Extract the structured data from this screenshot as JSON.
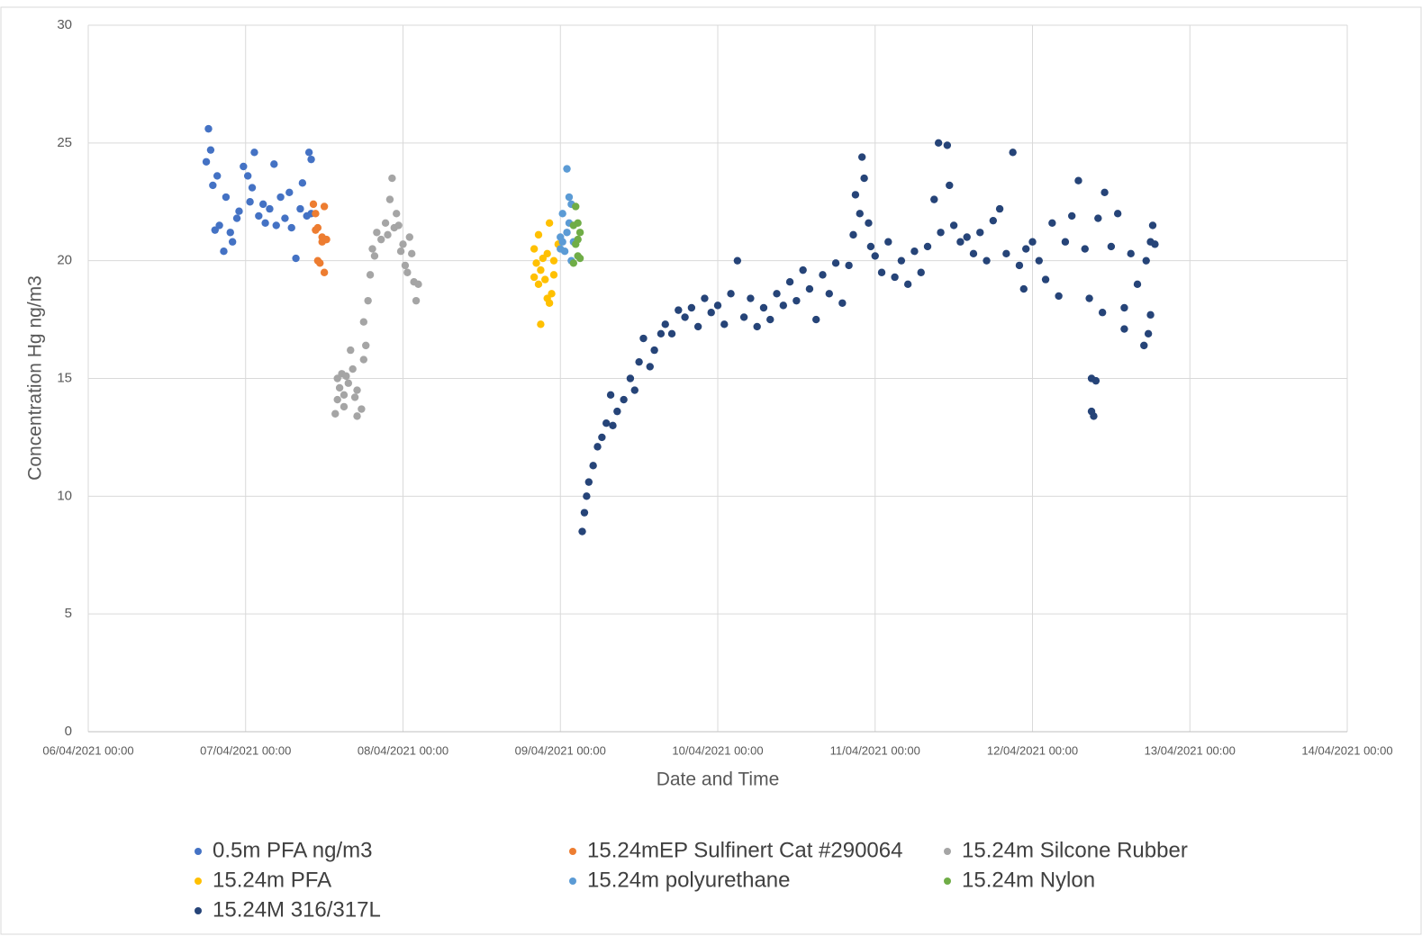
{
  "chart_data": {
    "type": "scatter",
    "x_label": "Date and Time",
    "y_label": "Concentration Hg ng/m3",
    "xlim": [
      "06/04/2021 00:00",
      "14/04/2021 00:00"
    ],
    "xticks": [
      "06/04/2021 00:00",
      "07/04/2021 00:00",
      "08/04/2021 00:00",
      "09/04/2021 00:00",
      "10/04/2021 00:00",
      "11/04/2021 00:00",
      "12/04/2021 00:00",
      "13/04/2021 00:00",
      "14/04/2021 00:00"
    ],
    "ylim": [
      0,
      30
    ],
    "yticks": [
      0,
      5,
      10,
      15,
      20,
      25,
      30
    ],
    "grid": true,
    "series": [
      {
        "name": "0.5m PFA ng/m3",
        "color": "#4472c4",
        "x": [
          "06/04/2021 18:00",
          "06/04/2021 18:20",
          "06/04/2021 18:40",
          "06/04/2021 19:00",
          "06/04/2021 19:20",
          "06/04/2021 19:40",
          "06/04/2021 20:00",
          "06/04/2021 20:40",
          "06/04/2021 21:00",
          "06/04/2021 21:40",
          "06/04/2021 22:00",
          "06/04/2021 22:40",
          "06/04/2021 23:00",
          "06/04/2021 23:40",
          "07/04/2021 00:20",
          "07/04/2021 00:40",
          "07/04/2021 01:00",
          "07/04/2021 01:20",
          "07/04/2021 02:00",
          "07/04/2021 02:40",
          "07/04/2021 03:00",
          "07/04/2021 03:40",
          "07/04/2021 04:20",
          "07/04/2021 04:40",
          "07/04/2021 05:20",
          "07/04/2021 06:00",
          "07/04/2021 06:40",
          "07/04/2021 07:00",
          "07/04/2021 07:40",
          "07/04/2021 08:20",
          "07/04/2021 08:40",
          "07/04/2021 09:20",
          "07/04/2021 09:40",
          "07/04/2021 10:00",
          "07/04/2021 10:00"
        ],
        "values": [
          24.2,
          25.6,
          24.7,
          23.2,
          21.3,
          23.6,
          21.5,
          20.4,
          22.7,
          21.2,
          20.8,
          21.8,
          22.1,
          24.0,
          23.6,
          22.5,
          23.1,
          24.6,
          21.9,
          22.4,
          21.6,
          22.2,
          24.1,
          21.5,
          22.7,
          21.8,
          22.9,
          21.4,
          20.1,
          22.2,
          23.3,
          21.9,
          24.6,
          24.3,
          22.0
        ]
      },
      {
        "name": "15.24mEP Sulfinert Cat #290064",
        "color": "#ed7d31",
        "x": [
          "07/04/2021 10:20",
          "07/04/2021 10:40",
          "07/04/2021 10:40",
          "07/04/2021 11:00",
          "07/04/2021 11:00",
          "07/04/2021 11:20",
          "07/04/2021 11:40",
          "07/04/2021 11:40",
          "07/04/2021 12:00",
          "07/04/2021 12:00",
          "07/04/2021 12:20"
        ],
        "values": [
          22.4,
          21.3,
          22.0,
          20.0,
          21.4,
          19.9,
          20.8,
          21.0,
          19.5,
          22.3,
          20.9
        ]
      },
      {
        "name": "15.24m Silcone Rubber",
        "color": "#a5a5a5",
        "x": [
          "07/04/2021 13:40",
          "07/04/2021 14:00",
          "07/04/2021 14:00",
          "07/04/2021 14:20",
          "07/04/2021 14:40",
          "07/04/2021 15:00",
          "07/04/2021 15:00",
          "07/04/2021 15:20",
          "07/04/2021 15:40",
          "07/04/2021 16:00",
          "07/04/2021 16:20",
          "07/04/2021 16:40",
          "07/04/2021 17:00",
          "07/04/2021 17:00",
          "07/04/2021 17:40",
          "07/04/2021 18:00",
          "07/04/2021 18:00",
          "07/04/2021 18:20",
          "07/04/2021 18:40",
          "07/04/2021 19:00",
          "07/04/2021 19:20",
          "07/04/2021 19:40",
          "07/04/2021 20:00",
          "07/04/2021 20:40",
          "07/04/2021 21:20",
          "07/04/2021 21:40",
          "07/04/2021 22:00",
          "07/04/2021 22:20",
          "07/04/2021 22:40",
          "07/04/2021 23:00",
          "07/04/2021 23:20",
          "07/04/2021 23:40",
          "08/04/2021 00:00",
          "08/04/2021 00:20",
          "08/04/2021 00:40",
          "08/04/2021 01:00",
          "08/04/2021 01:20",
          "08/04/2021 01:40",
          "08/04/2021 02:00",
          "08/04/2021 02:20"
        ],
        "values": [
          13.5,
          14.1,
          15.0,
          14.6,
          15.2,
          14.3,
          13.8,
          15.1,
          14.8,
          16.2,
          15.4,
          14.2,
          13.4,
          14.5,
          13.7,
          15.8,
          17.4,
          16.4,
          18.3,
          19.4,
          20.5,
          20.2,
          21.2,
          20.9,
          21.6,
          21.1,
          22.6,
          23.5,
          21.4,
          22.0,
          21.5,
          20.4,
          20.7,
          19.8,
          19.5,
          21.0,
          20.3,
          19.1,
          18.3,
          19.0
        ]
      },
      {
        "name": "15.24m PFA",
        "color": "#ffc000",
        "x": [
          "08/04/2021 20:00",
          "08/04/2021 20:00",
          "08/04/2021 20:20",
          "08/04/2021 20:40",
          "08/04/2021 20:40",
          "08/04/2021 21:00",
          "08/04/2021 21:00",
          "08/04/2021 21:20",
          "08/04/2021 21:40",
          "08/04/2021 22:00",
          "08/04/2021 22:00",
          "08/04/2021 22:20",
          "08/04/2021 22:20",
          "08/04/2021 22:40",
          "08/04/2021 23:00",
          "08/04/2021 23:00",
          "08/04/2021 23:40"
        ],
        "values": [
          20.5,
          19.3,
          19.9,
          21.1,
          19.0,
          17.3,
          19.6,
          20.1,
          19.2,
          18.4,
          20.3,
          21.6,
          18.2,
          18.6,
          20.0,
          19.4,
          20.7
        ]
      },
      {
        "name": "15.24m polyurethane",
        "color": "#5b9bd5",
        "x": [
          "09/04/2021 00:00",
          "09/04/2021 00:00",
          "09/04/2021 00:20",
          "09/04/2021 00:20",
          "09/04/2021 00:40",
          "09/04/2021 01:00",
          "09/04/2021 01:00",
          "09/04/2021 01:20",
          "09/04/2021 01:20",
          "09/04/2021 01:40",
          "09/04/2021 01:40",
          "09/04/2021 02:00"
        ],
        "values": [
          21.0,
          20.5,
          22.0,
          20.8,
          20.4,
          23.9,
          21.2,
          22.7,
          21.6,
          20.0,
          22.4,
          20.8
        ]
      },
      {
        "name": "15.24m Nylon",
        "color": "#70ad47",
        "x": [
          "09/04/2021 02:00",
          "09/04/2021 02:20",
          "09/04/2021 02:20",
          "09/04/2021 02:40",
          "09/04/2021 02:40",
          "09/04/2021 03:00",
          "09/04/2021 03:00",
          "09/04/2021 02:00",
          "09/04/2021 02:40"
        ],
        "values": [
          21.5,
          22.3,
          20.7,
          21.6,
          20.2,
          21.2,
          20.1,
          19.9,
          20.9
        ]
      },
      {
        "name": "15.24M 316/317L",
        "color": "#264478",
        "x": [
          "09/04/2021 03:20",
          "09/04/2021 03:40",
          "09/04/2021 04:00",
          "09/04/2021 04:20",
          "09/04/2021 05:00",
          "09/04/2021 05:40",
          "09/04/2021 06:20",
          "09/04/2021 07:00",
          "09/04/2021 07:40",
          "09/04/2021 08:00",
          "09/04/2021 08:40",
          "09/04/2021 09:40",
          "09/04/2021 10:40",
          "09/04/2021 11:20",
          "09/04/2021 12:00",
          "09/04/2021 12:40",
          "09/04/2021 13:40",
          "09/04/2021 14:20",
          "09/04/2021 15:20",
          "09/04/2021 16:00",
          "09/04/2021 17:00",
          "09/04/2021 18:00",
          "09/04/2021 19:00",
          "09/04/2021 20:00",
          "09/04/2021 21:00",
          "09/04/2021 22:00",
          "09/04/2021 23:00",
          "10/04/2021 00:00",
          "10/04/2021 01:00",
          "10/04/2021 02:00",
          "10/04/2021 03:00",
          "10/04/2021 04:00",
          "10/04/2021 05:00",
          "10/04/2021 06:00",
          "10/04/2021 07:00",
          "10/04/2021 08:00",
          "10/04/2021 09:00",
          "10/04/2021 10:00",
          "10/04/2021 11:00",
          "10/04/2021 12:00",
          "10/04/2021 13:00",
          "10/04/2021 14:00",
          "10/04/2021 15:00",
          "10/04/2021 16:00",
          "10/04/2021 17:00",
          "10/04/2021 18:00",
          "10/04/2021 19:00",
          "10/04/2021 20:00",
          "10/04/2021 20:40",
          "10/04/2021 21:00",
          "10/04/2021 21:40",
          "10/04/2021 22:00",
          "10/04/2021 22:20",
          "10/04/2021 23:00",
          "10/04/2021 23:20",
          "11/04/2021 00:00",
          "11/04/2021 01:00",
          "11/04/2021 02:00",
          "11/04/2021 03:00",
          "11/04/2021 04:00",
          "11/04/2021 05:00",
          "11/04/2021 06:00",
          "11/04/2021 07:00",
          "11/04/2021 08:00",
          "11/04/2021 09:00",
          "11/04/2021 09:40",
          "11/04/2021 10:00",
          "11/04/2021 11:00",
          "11/04/2021 11:20",
          "11/04/2021 12:00",
          "11/04/2021 13:00",
          "11/04/2021 14:00",
          "11/04/2021 15:00",
          "11/04/2021 16:00",
          "11/04/2021 17:00",
          "11/04/2021 18:00",
          "11/04/2021 19:00",
          "11/04/2021 21:00",
          "11/04/2021 20:00",
          "11/04/2021 22:00",
          "11/04/2021 22:40",
          "11/04/2021 23:00",
          "12/04/2021 00:00",
          "12/04/2021 01:00",
          "12/04/2021 02:00",
          "12/04/2021 03:00",
          "12/04/2021 04:00",
          "12/04/2021 05:00",
          "12/04/2021 06:00",
          "12/04/2021 07:00",
          "12/04/2021 08:00",
          "12/04/2021 08:40",
          "12/04/2021 09:00",
          "12/04/2021 09:00",
          "12/04/2021 09:20",
          "12/04/2021 09:40",
          "12/04/2021 10:00",
          "12/04/2021 10:40",
          "12/04/2021 11:00",
          "12/04/2021 12:00",
          "12/04/2021 13:00",
          "12/04/2021 14:00",
          "12/04/2021 14:00",
          "12/04/2021 15:00",
          "12/04/2021 16:00",
          "12/04/2021 17:00",
          "12/04/2021 17:20",
          "12/04/2021 17:40",
          "12/04/2021 18:00",
          "12/04/2021 18:00",
          "12/04/2021 18:20",
          "12/04/2021 18:40"
        ],
        "values": [
          8.5,
          9.3,
          10.0,
          10.6,
          11.3,
          12.1,
          12.5,
          13.1,
          14.3,
          13.0,
          13.6,
          14.1,
          15.0,
          14.5,
          15.7,
          16.7,
          15.5,
          16.2,
          16.9,
          17.3,
          16.9,
          17.9,
          17.6,
          18.0,
          17.2,
          18.4,
          17.8,
          18.1,
          17.3,
          18.6,
          20.0,
          17.6,
          18.4,
          17.2,
          18.0,
          17.5,
          18.6,
          18.1,
          19.1,
          18.3,
          19.6,
          18.8,
          17.5,
          19.4,
          18.6,
          19.9,
          18.2,
          19.8,
          21.1,
          22.8,
          22.0,
          24.4,
          23.5,
          21.6,
          20.6,
          20.2,
          19.5,
          20.8,
          19.3,
          20.0,
          19.0,
          20.4,
          19.5,
          20.6,
          22.6,
          25.0,
          21.2,
          24.9,
          23.2,
          21.5,
          20.8,
          21.0,
          20.3,
          21.2,
          20.0,
          21.7,
          22.2,
          24.6,
          20.3,
          19.8,
          18.8,
          20.5,
          20.8,
          20.0,
          19.2,
          21.6,
          18.5,
          20.8,
          21.9,
          23.4,
          20.5,
          18.4,
          15.0,
          13.6,
          13.4,
          14.9,
          21.8,
          17.8,
          22.9,
          20.6,
          22.0,
          18.0,
          17.1,
          20.3,
          19.0,
          16.4,
          20.0,
          16.9,
          17.7,
          20.8,
          21.5,
          20.7
        ]
      }
    ]
  }
}
